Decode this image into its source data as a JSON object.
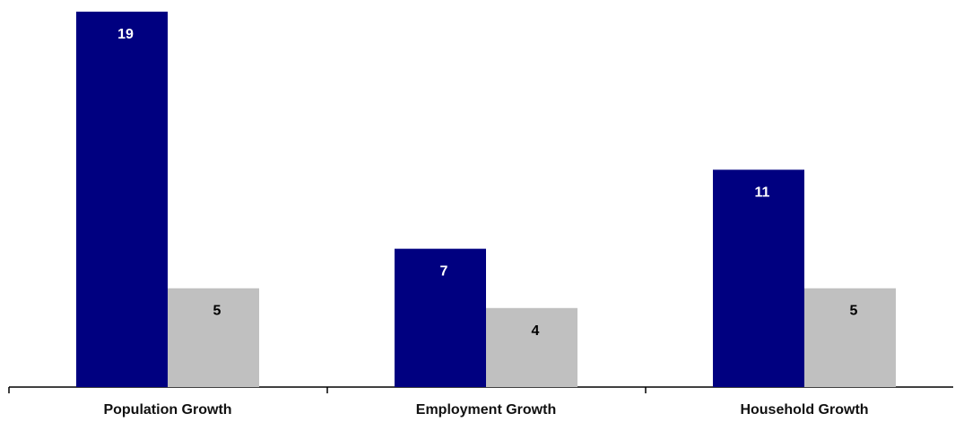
{
  "chart_data": {
    "type": "bar",
    "categories": [
      "Population Growth",
      "Employment Growth",
      "Household Growth"
    ],
    "series": [
      {
        "color": "#000080",
        "label_color": "#ffffff",
        "values": [
          19,
          7,
          11
        ]
      },
      {
        "color": "#c0c0c0",
        "label_color": "#000000",
        "values": [
          5,
          4,
          5
        ]
      }
    ],
    "title": "",
    "xlabel": "",
    "ylabel": "",
    "ylim": [
      0,
      19.5
    ],
    "grid": false,
    "legend": "none",
    "data_labels": true
  }
}
